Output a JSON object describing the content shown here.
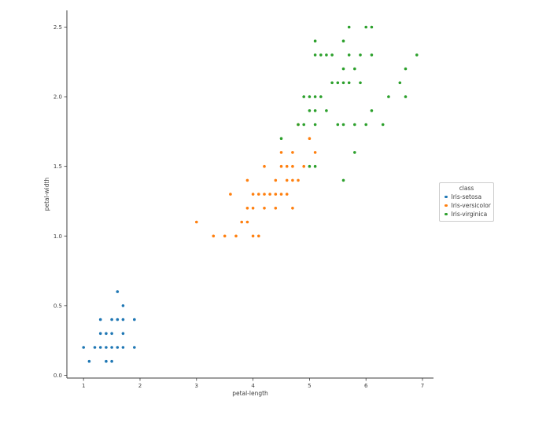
{
  "figure": {
    "background": "#ffffff",
    "text_color": "#3d3d3d",
    "spine_color": "#3c3c3c"
  },
  "chart_data": {
    "type": "scatter",
    "title": "",
    "xlabel": "petal-length",
    "ylabel": "petal-width",
    "xlim": [
      0.705,
      7.195
    ],
    "ylim": [
      -0.02,
      2.62
    ],
    "grid": false,
    "xticks": {
      "values": [
        1,
        2,
        3,
        4,
        5,
        6,
        7
      ],
      "labels": [
        "1",
        "2",
        "3",
        "4",
        "5",
        "6",
        "7"
      ]
    },
    "yticks": {
      "values": [
        0.0,
        0.5,
        1.0,
        1.5,
        2.0,
        2.5
      ],
      "labels": [
        "0.0",
        "0.5",
        "1.0",
        "1.5",
        "2.0",
        "2.5"
      ]
    },
    "legend": {
      "title": "class",
      "position": "right-outside"
    },
    "marker_radius": 1.8,
    "series": [
      {
        "name": "Iris-setosa",
        "color": "#1f77b4",
        "points": [
          [
            1.0,
            0.2
          ],
          [
            1.1,
            0.1
          ],
          [
            1.2,
            0.2
          ],
          [
            1.3,
            0.2
          ],
          [
            1.3,
            0.3
          ],
          [
            1.3,
            0.4
          ],
          [
            1.4,
            0.1
          ],
          [
            1.4,
            0.2
          ],
          [
            1.4,
            0.3
          ],
          [
            1.5,
            0.1
          ],
          [
            1.5,
            0.2
          ],
          [
            1.5,
            0.3
          ],
          [
            1.5,
            0.4
          ],
          [
            1.6,
            0.2
          ],
          [
            1.6,
            0.4
          ],
          [
            1.6,
            0.6
          ],
          [
            1.7,
            0.2
          ],
          [
            1.7,
            0.3
          ],
          [
            1.7,
            0.4
          ],
          [
            1.7,
            0.5
          ],
          [
            1.9,
            0.2
          ],
          [
            1.9,
            0.4
          ]
        ]
      },
      {
        "name": "Iris-versicolor",
        "color": "#ff7f0e",
        "points": [
          [
            3.0,
            1.1
          ],
          [
            3.3,
            1.0
          ],
          [
            3.5,
            1.0
          ],
          [
            3.6,
            1.3
          ],
          [
            3.7,
            1.0
          ],
          [
            3.8,
            1.1
          ],
          [
            3.9,
            1.1
          ],
          [
            3.9,
            1.2
          ],
          [
            3.9,
            1.4
          ],
          [
            4.0,
            1.0
          ],
          [
            4.0,
            1.2
          ],
          [
            4.0,
            1.3
          ],
          [
            4.1,
            1.0
          ],
          [
            4.1,
            1.3
          ],
          [
            4.2,
            1.2
          ],
          [
            4.2,
            1.3
          ],
          [
            4.2,
            1.5
          ],
          [
            4.3,
            1.3
          ],
          [
            4.4,
            1.2
          ],
          [
            4.4,
            1.3
          ],
          [
            4.4,
            1.4
          ],
          [
            4.5,
            1.3
          ],
          [
            4.5,
            1.5
          ],
          [
            4.5,
            1.6
          ],
          [
            4.6,
            1.3
          ],
          [
            4.6,
            1.4
          ],
          [
            4.6,
            1.5
          ],
          [
            4.7,
            1.2
          ],
          [
            4.7,
            1.4
          ],
          [
            4.7,
            1.5
          ],
          [
            4.7,
            1.6
          ],
          [
            4.8,
            1.4
          ],
          [
            4.8,
            1.8
          ],
          [
            4.9,
            1.5
          ],
          [
            5.0,
            1.7
          ],
          [
            5.1,
            1.6
          ]
        ]
      },
      {
        "name": "Iris-virginica",
        "color": "#2ca02c",
        "points": [
          [
            4.5,
            1.7
          ],
          [
            4.8,
            1.8
          ],
          [
            4.9,
            1.8
          ],
          [
            4.9,
            2.0
          ],
          [
            5.0,
            1.5
          ],
          [
            5.0,
            1.9
          ],
          [
            5.0,
            2.0
          ],
          [
            5.1,
            1.5
          ],
          [
            5.1,
            1.8
          ],
          [
            5.1,
            1.9
          ],
          [
            5.1,
            2.0
          ],
          [
            5.1,
            2.3
          ],
          [
            5.1,
            2.4
          ],
          [
            5.2,
            2.0
          ],
          [
            5.2,
            2.3
          ],
          [
            5.3,
            1.9
          ],
          [
            5.3,
            2.3
          ],
          [
            5.4,
            2.1
          ],
          [
            5.4,
            2.3
          ],
          [
            5.5,
            1.8
          ],
          [
            5.5,
            2.1
          ],
          [
            5.6,
            1.4
          ],
          [
            5.6,
            1.8
          ],
          [
            5.6,
            2.1
          ],
          [
            5.6,
            2.2
          ],
          [
            5.6,
            2.4
          ],
          [
            5.7,
            2.1
          ],
          [
            5.7,
            2.3
          ],
          [
            5.7,
            2.5
          ],
          [
            5.8,
            1.6
          ],
          [
            5.8,
            1.8
          ],
          [
            5.8,
            2.2
          ],
          [
            5.9,
            2.1
          ],
          [
            5.9,
            2.3
          ],
          [
            6.0,
            1.8
          ],
          [
            6.0,
            2.5
          ],
          [
            6.1,
            1.9
          ],
          [
            6.1,
            2.3
          ],
          [
            6.1,
            2.5
          ],
          [
            6.3,
            1.8
          ],
          [
            6.4,
            2.0
          ],
          [
            6.6,
            2.1
          ],
          [
            6.7,
            2.0
          ],
          [
            6.7,
            2.2
          ],
          [
            6.9,
            2.3
          ]
        ]
      }
    ]
  }
}
